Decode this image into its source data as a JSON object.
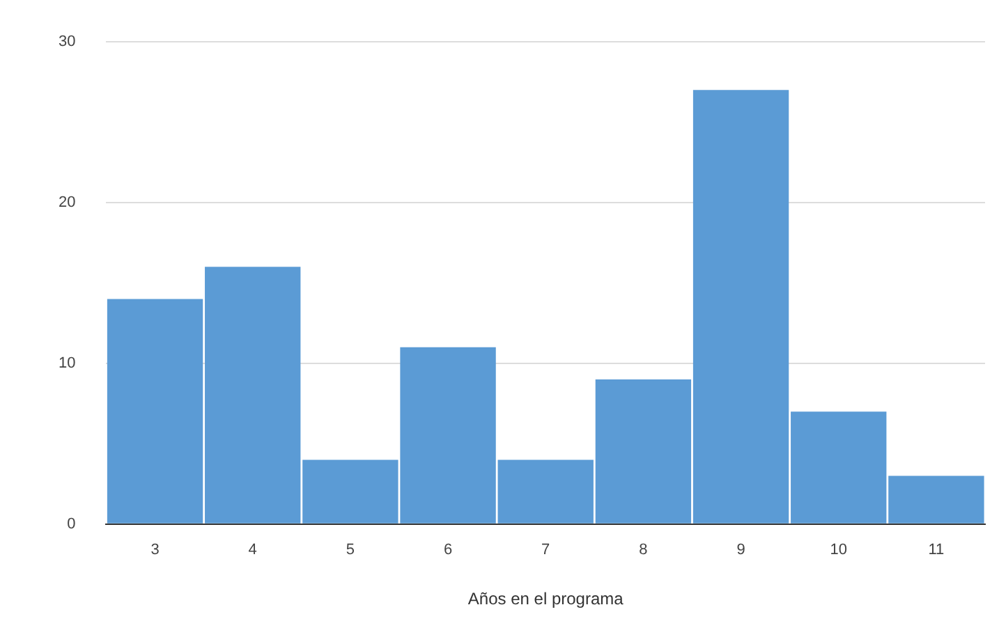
{
  "chart_data": {
    "type": "bar",
    "xlabel": "Años en el programa",
    "categories": [
      "3",
      "4",
      "5",
      "6",
      "7",
      "8",
      "9",
      "10",
      "11"
    ],
    "values": [
      14,
      16,
      4,
      11,
      4,
      9,
      27,
      7,
      3
    ],
    "color": "#5b9bd5",
    "ylim": [
      0,
      30
    ],
    "yticks": [
      0,
      10,
      20,
      30
    ],
    "grid": "y",
    "legend": false
  }
}
